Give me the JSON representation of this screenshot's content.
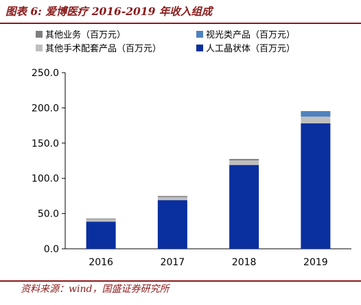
{
  "header": {
    "title": "图表 6:  爱博医疗 2016-2019 年收入组成"
  },
  "footer": {
    "source": "资料来源：wind，国盛证券研究所"
  },
  "chart_data": {
    "type": "bar",
    "stacked": true,
    "categories": [
      "2016",
      "2017",
      "2018",
      "2019"
    ],
    "series": [
      {
        "name": "人工晶状体（百万元）",
        "color": "#0a2f9e",
        "values": [
          38.5,
          69.0,
          119.0,
          178.0
        ]
      },
      {
        "name": "其他手术配套产品（百万元）",
        "color": "#bfbfbf",
        "values": [
          3.5,
          4.5,
          6.5,
          9.5
        ]
      },
      {
        "name": "视光类产品（百万元）",
        "color": "#4f81bd",
        "values": [
          0.0,
          0.0,
          0.0,
          7.0
        ]
      },
      {
        "name": "其他业务（百万元）",
        "color": "#7f7f7f",
        "values": [
          1.0,
          1.5,
          2.0,
          1.0
        ]
      }
    ],
    "yticks": [
      "0.0",
      "50.0",
      "100.0",
      "150.0",
      "200.0",
      "250.0"
    ],
    "ylim": [
      0,
      250
    ],
    "legend_position": "top",
    "grid": false
  }
}
